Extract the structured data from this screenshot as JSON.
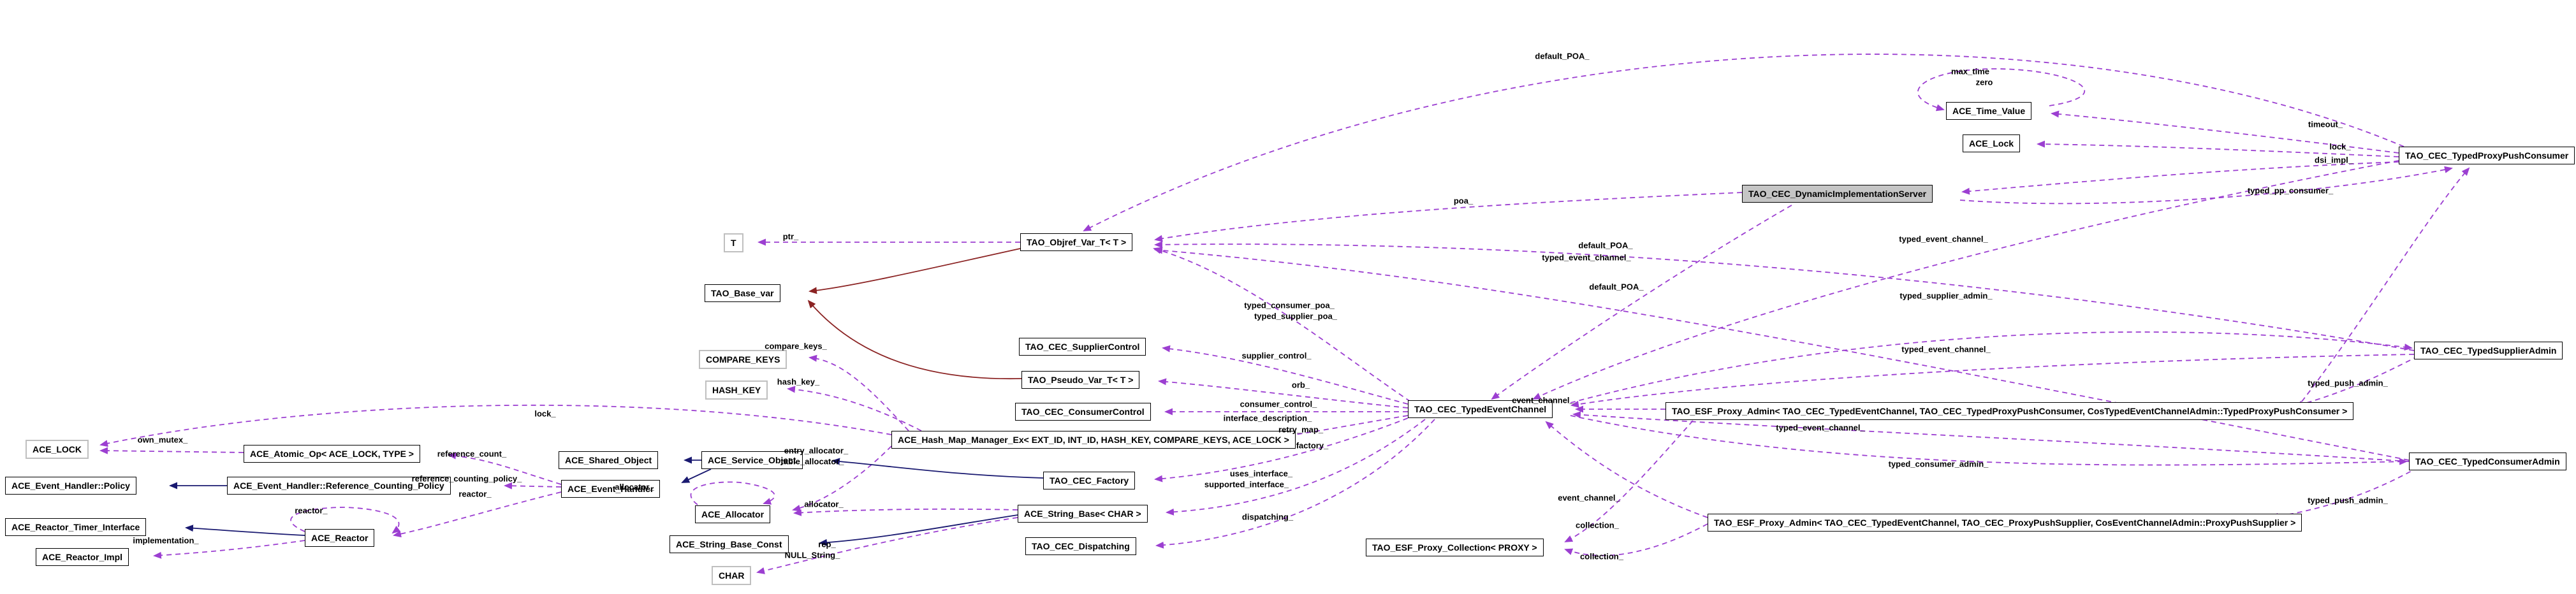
{
  "diagram": {
    "kind": "doxygen-collaboration-graph",
    "highlighted_class": "TAO_CEC_DynamicImplementationServer",
    "colors": {
      "member_edge": "#9c3fd1",
      "inheritance_edge": "#191970",
      "template_edge": "#8b2323",
      "highlight_fill": "#c5c5c5",
      "param_border": "#bfbfbf"
    },
    "nodes": [
      {
        "id": "t",
        "label": "T"
      },
      {
        "id": "objref",
        "label": "TAO_Objref_Var_T< T >"
      },
      {
        "id": "base_var",
        "label": "TAO_Base_var"
      },
      {
        "id": "time_value",
        "label": "ACE_Time_Value"
      },
      {
        "id": "ace_lock_cls",
        "label": "ACE_Lock"
      },
      {
        "id": "dis",
        "label": "TAO_CEC_DynamicImplementationServer"
      },
      {
        "id": "typed_ppc",
        "label": "TAO_CEC_TypedProxyPushConsumer"
      },
      {
        "id": "supplier_ctrl",
        "label": "TAO_CEC_SupplierControl"
      },
      {
        "id": "pseudo_var",
        "label": "TAO_Pseudo_Var_T< T >"
      },
      {
        "id": "consumer_ctrl",
        "label": "TAO_CEC_ConsumerControl"
      },
      {
        "id": "compare_keys",
        "label": "COMPARE_KEYS"
      },
      {
        "id": "hash_key",
        "label": "HASH_KEY"
      },
      {
        "id": "hash_map",
        "label": "ACE_Hash_Map_Manager_Ex< EXT_ID, INT_ID, HASH_KEY, COMPARE_KEYS, ACE_LOCK >"
      },
      {
        "id": "factory",
        "label": "TAO_CEC_Factory"
      },
      {
        "id": "string_base",
        "label": "ACE_String_Base< CHAR >"
      },
      {
        "id": "dispatching",
        "label": "TAO_CEC_Dispatching"
      },
      {
        "id": "channel",
        "label": "TAO_CEC_TypedEventChannel"
      },
      {
        "id": "proxy_coll",
        "label": "TAO_ESF_Proxy_Collection< PROXY >"
      },
      {
        "id": "esf1",
        "label": "TAO_ESF_Proxy_Admin< TAO_CEC_TypedEventChannel, TAO_CEC_TypedProxyPushConsumer, CosTypedEventChannelAdmin::TypedProxyPushConsumer >"
      },
      {
        "id": "esf2",
        "label": "TAO_ESF_Proxy_Admin< TAO_CEC_TypedEventChannel, TAO_CEC_ProxyPushSupplier, CosEventChannelAdmin::ProxyPushSupplier >"
      },
      {
        "id": "supplier_admin",
        "label": "TAO_CEC_TypedSupplierAdmin"
      },
      {
        "id": "consumer_admin",
        "label": "TAO_CEC_TypedConsumerAdmin"
      },
      {
        "id": "ace_lock2",
        "label": "ACE_LOCK"
      },
      {
        "id": "atomic_op",
        "label": "ACE_Atomic_Op< ACE_LOCK, TYPE >"
      },
      {
        "id": "eh_policy",
        "label": "ACE_Event_Handler::Policy"
      },
      {
        "id": "rcp",
        "label": "ACE_Event_Handler::Reference_Counting_Policy"
      },
      {
        "id": "shared_obj",
        "label": "ACE_Shared_Object"
      },
      {
        "id": "event_handler",
        "label": "ACE_Event_Handler"
      },
      {
        "id": "service_obj",
        "label": "ACE_Service_Object"
      },
      {
        "id": "allocator",
        "label": "ACE_Allocator"
      },
      {
        "id": "string_const",
        "label": "ACE_String_Base_Const"
      },
      {
        "id": "char_box",
        "label": "CHAR"
      },
      {
        "id": "reactor",
        "label": "ACE_Reactor"
      },
      {
        "id": "reactor_timer",
        "label": "ACE_Reactor_Timer_Interface"
      },
      {
        "id": "reactor_impl",
        "label": "ACE_Reactor_Impl"
      }
    ],
    "edge_labels": [
      {
        "id": "poa",
        "text": "poa_"
      },
      {
        "id": "default_poa_top",
        "text": "default_POA_"
      },
      {
        "id": "default_poa_mid",
        "text": "default_POA_"
      },
      {
        "id": "tec_dis",
        "text": "typed_event_channel_"
      },
      {
        "id": "default_poa_low",
        "text": "default_POA_"
      },
      {
        "id": "typed_consumer_poa",
        "text": "typed_consumer_poa_"
      },
      {
        "id": "typed_supplier_poa",
        "text": "typed_supplier_poa_"
      },
      {
        "id": "tec_ppc",
        "text": "typed_event_channel_"
      },
      {
        "id": "typed_supplier_admin",
        "text": "typed_supplier_admin_"
      },
      {
        "id": "tec_sa",
        "text": "typed_event_channel_"
      },
      {
        "id": "tec_ca",
        "text": "typed_event_channel_"
      },
      {
        "id": "typed_consumer_admin",
        "text": "typed_consumer_admin_"
      },
      {
        "id": "typed_push_admin_1",
        "text": "typed_push_admin_"
      },
      {
        "id": "typed_push_admin_2",
        "text": "typed_push_admin_"
      },
      {
        "id": "event_channel_1",
        "text": "event_channel_"
      },
      {
        "id": "event_channel_2",
        "text": "event_channel_"
      },
      {
        "id": "collection_1",
        "text": "collection_"
      },
      {
        "id": "collection_2",
        "text": "collection_"
      },
      {
        "id": "supplier_control",
        "text": "supplier_control_"
      },
      {
        "id": "orb",
        "text": "orb_"
      },
      {
        "id": "consumer_control",
        "text": "consumer_control_"
      },
      {
        "id": "interface_description",
        "text": "interface_description_"
      },
      {
        "id": "retry_map",
        "text": "retry_map_"
      },
      {
        "id": "factory_l",
        "text": "factory_"
      },
      {
        "id": "uses_interface",
        "text": "uses_interface_"
      },
      {
        "id": "supported_interface",
        "text": "supported_interface_"
      },
      {
        "id": "dispatching_l",
        "text": "dispatching_"
      },
      {
        "id": "compare_keys_l",
        "text": "compare_keys_"
      },
      {
        "id": "hash_key_l",
        "text": "hash_key_"
      },
      {
        "id": "lock_hash",
        "text": "lock_"
      },
      {
        "id": "own_mutex",
        "text": "own_mutex_"
      },
      {
        "id": "reference_count",
        "text": "reference_count_"
      },
      {
        "id": "ref_counting_policy",
        "text": "reference_counting_policy_"
      },
      {
        "id": "reactor_eh",
        "text": "reactor_"
      },
      {
        "id": "entry_allocator",
        "text": "entry_allocator_"
      },
      {
        "id": "table_allocator",
        "text": "table_allocator_"
      },
      {
        "id": "allocator_loop",
        "text": "allocator_"
      },
      {
        "id": "allocator_sb",
        "text": "allocator_"
      },
      {
        "id": "rep",
        "text": "rep_"
      },
      {
        "id": "null_string",
        "text": "NULL_String_"
      },
      {
        "id": "reactor_loop",
        "text": "reactor_"
      },
      {
        "id": "implementation",
        "text": "implementation_"
      },
      {
        "id": "max_time",
        "text": "max_time"
      },
      {
        "id": "zero",
        "text": "zero"
      },
      {
        "id": "timeout",
        "text": "timeout_"
      },
      {
        "id": "lock_ppc",
        "text": "lock_"
      },
      {
        "id": "dsi_impl",
        "text": "dsi_impl_"
      },
      {
        "id": "typed_pp_consumer",
        "text": "typed_pp_consumer_"
      },
      {
        "id": "ptr",
        "text": "ptr_"
      }
    ]
  }
}
